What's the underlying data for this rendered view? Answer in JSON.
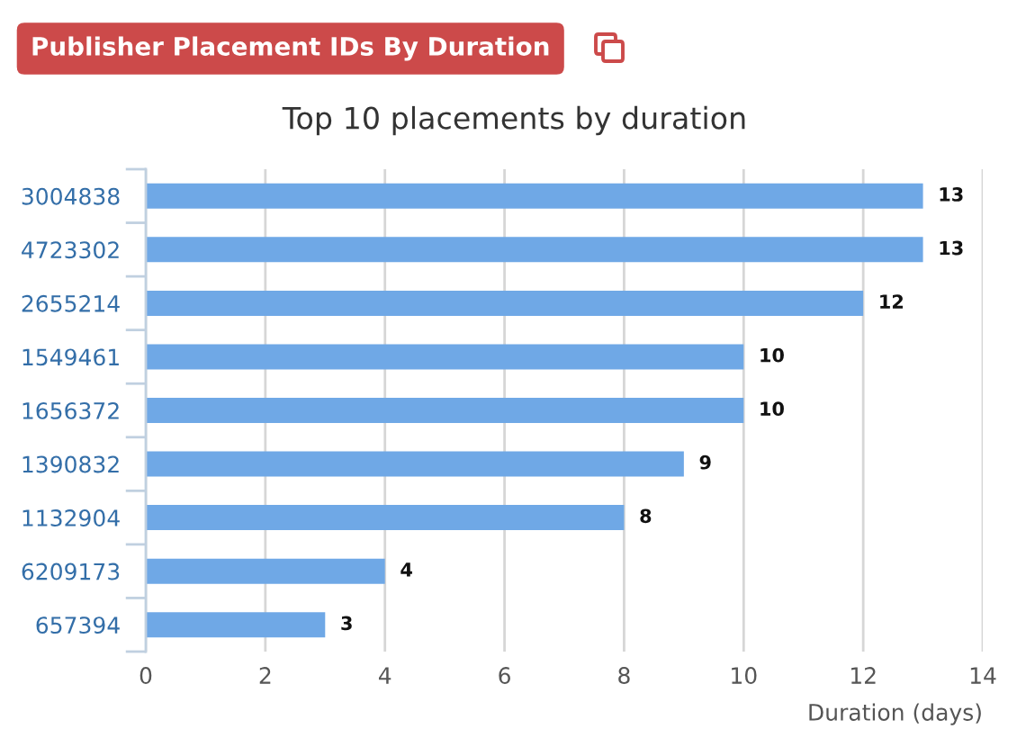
{
  "chart_data": {
    "type": "bar",
    "orientation": "horizontal",
    "title": "Publisher Placement IDs By Duration",
    "subtitle": "Top 10 placements by duration",
    "xlabel": "Duration (days)",
    "categories": [
      "3004838",
      "4723302",
      "2655214",
      "1549461",
      "1656372",
      "1390832",
      "1132904",
      "6209173",
      "657394"
    ],
    "values": [
      13,
      13,
      12,
      10,
      10,
      9,
      8,
      4,
      3
    ],
    "color": "#6fa8e6",
    "xlim": [
      0,
      14
    ],
    "xticks": [
      0,
      2,
      4,
      6,
      8,
      10,
      12,
      14
    ],
    "grid": "x",
    "data_labels": true
  }
}
